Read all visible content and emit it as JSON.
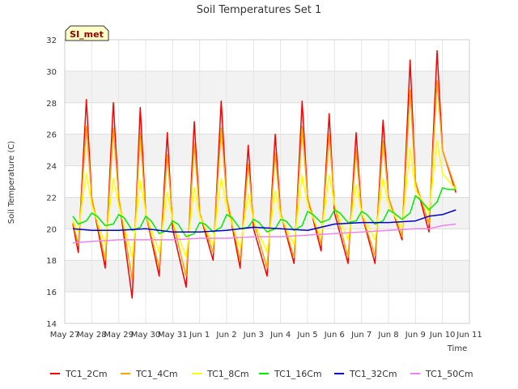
{
  "chart_data": {
    "type": "line",
    "title": "Soil Temperatures Set 1",
    "xlabel": "Time",
    "ylabel": "Soil Temperature (C)",
    "ylim": [
      14,
      32
    ],
    "yticks": [
      14,
      16,
      18,
      20,
      22,
      24,
      26,
      28,
      30,
      32
    ],
    "xlim": [
      0,
      15
    ],
    "xtick_labels": [
      "May 27",
      "May 28",
      "May 29",
      "May 30",
      "May 31",
      "Jun 1",
      "Jun 2",
      "Jun 3",
      "Jun 4",
      "Jun 5",
      "Jun 6",
      "Jun 7",
      "Jun 8",
      "Jun 9",
      "Jun 10",
      "Jun 11"
    ],
    "grid": true,
    "background_bands": true,
    "legend_position": "bottom",
    "badge": "SI_met",
    "series": [
      {
        "name": "TC1_2Cm",
        "color": "#ff0000",
        "x": [
          0.3,
          0.5,
          0.8,
          1.0,
          1.5,
          1.8,
          2.0,
          2.5,
          2.8,
          3.0,
          3.5,
          3.8,
          4.0,
          4.5,
          4.8,
          5.0,
          5.5,
          5.8,
          6.0,
          6.5,
          6.8,
          7.0,
          7.5,
          7.8,
          8.0,
          8.5,
          8.8,
          9.0,
          9.5,
          9.8,
          10.0,
          10.5,
          10.8,
          11.0,
          11.5,
          11.8,
          12.0,
          12.5,
          12.8,
          13.0,
          13.5,
          13.8,
          14.0,
          14.5
        ],
        "y": [
          20.3,
          18.5,
          28.2,
          22,
          17.5,
          28,
          22,
          15.6,
          27.7,
          21,
          17,
          26.1,
          20,
          16.3,
          26.8,
          21,
          18,
          28.1,
          22,
          17.5,
          25.3,
          20,
          17,
          26,
          21,
          17.8,
          28.1,
          22,
          18.6,
          27.3,
          21,
          17.8,
          26.1,
          21,
          17.8,
          26.9,
          22,
          19.3,
          30.7,
          23,
          19.8,
          31.3,
          25,
          22.3
        ]
      },
      {
        "name": "TC1_4Cm",
        "color": "#ffa500",
        "x": [
          0.3,
          0.5,
          0.8,
          1.0,
          1.5,
          1.8,
          2.0,
          2.5,
          2.8,
          3.0,
          3.5,
          3.8,
          4.0,
          4.5,
          4.8,
          5.0,
          5.5,
          5.8,
          6.0,
          6.5,
          6.8,
          7.0,
          7.5,
          7.8,
          8.0,
          8.5,
          8.8,
          9.0,
          9.5,
          9.8,
          10.0,
          10.5,
          10.8,
          11.0,
          11.5,
          11.8,
          12.0,
          12.5,
          12.8,
          13.0,
          13.5,
          13.8,
          14.0,
          14.5
        ],
        "y": [
          20.4,
          19,
          26.5,
          22,
          18,
          26.4,
          22,
          16.8,
          26.1,
          21,
          17.5,
          24.7,
          20.5,
          17,
          25.4,
          21,
          18.5,
          26.4,
          22,
          18,
          24.1,
          20.5,
          17.5,
          24.8,
          21,
          18.2,
          26.5,
          22,
          19,
          26,
          21.5,
          18.2,
          25,
          21,
          18.3,
          25.6,
          22,
          19.5,
          28.8,
          23,
          20.3,
          29.4,
          25,
          22.5
        ]
      },
      {
        "name": "TC1_8Cm",
        "color": "#ffff00",
        "x": [
          0.3,
          0.5,
          0.8,
          1.0,
          1.5,
          1.8,
          2.0,
          2.5,
          2.8,
          3.0,
          3.5,
          3.8,
          4.0,
          4.5,
          4.8,
          5.0,
          5.5,
          5.8,
          6.0,
          6.5,
          6.8,
          7.0,
          7.5,
          7.8,
          8.0,
          8.5,
          8.8,
          9.0,
          9.5,
          9.8,
          10.0,
          10.5,
          10.8,
          11.0,
          11.5,
          11.8,
          12.0,
          12.5,
          12.8,
          13.0,
          13.5,
          13.8,
          14.0,
          14.5
        ],
        "y": [
          20.5,
          19.8,
          23.5,
          21.5,
          19,
          23.2,
          21.5,
          18.2,
          23.1,
          21,
          18.5,
          22.3,
          20.5,
          18.2,
          22.6,
          20.8,
          19,
          23.2,
          21.3,
          18.8,
          22.2,
          20.5,
          18.5,
          22.4,
          20.8,
          19,
          23.4,
          21.5,
          19.5,
          23.4,
          21.5,
          19.3,
          22.8,
          21,
          19.3,
          23.2,
          21.5,
          20,
          25.1,
          22.5,
          21,
          25.6,
          23.5,
          22.5
        ]
      },
      {
        "name": "TC1_16Cm",
        "color": "#00ee00",
        "x": [
          0.3,
          0.5,
          0.8,
          1.0,
          1.2,
          1.5,
          1.8,
          2.0,
          2.2,
          2.5,
          2.8,
          3.0,
          3.2,
          3.5,
          3.8,
          4.0,
          4.2,
          4.5,
          4.8,
          5.0,
          5.2,
          5.5,
          5.8,
          6.0,
          6.2,
          6.5,
          6.8,
          7.0,
          7.2,
          7.5,
          7.8,
          8.0,
          8.2,
          8.5,
          8.8,
          9.0,
          9.2,
          9.5,
          9.8,
          10.0,
          10.2,
          10.5,
          10.8,
          11.0,
          11.2,
          11.5,
          11.8,
          12.0,
          12.2,
          12.5,
          12.8,
          13.0,
          13.2,
          13.5,
          13.8,
          14.0,
          14.2,
          14.5
        ],
        "y": [
          20.8,
          20.3,
          20.5,
          21,
          20.8,
          20.2,
          20.3,
          20.9,
          20.7,
          19.9,
          20.1,
          20.8,
          20.5,
          19.7,
          19.9,
          20.5,
          20.3,
          19.5,
          19.7,
          20.4,
          20.3,
          19.8,
          20.1,
          20.9,
          20.7,
          20,
          20.1,
          20.6,
          20.4,
          19.8,
          20,
          20.6,
          20.5,
          19.9,
          20.2,
          21.1,
          20.9,
          20.4,
          20.6,
          21.2,
          21,
          20.4,
          20.5,
          21.1,
          20.9,
          20.3,
          20.5,
          21.2,
          21,
          20.6,
          21,
          22.1,
          21.8,
          21.2,
          21.7,
          22.6,
          22.5,
          22.5
        ]
      },
      {
        "name": "TC1_32Cm",
        "color": "#0000cc",
        "x": [
          0.3,
          1.0,
          2.0,
          3.0,
          4.0,
          5.0,
          6.0,
          7.0,
          8.0,
          9.0,
          10.0,
          11.0,
          12.0,
          13.0,
          13.5,
          14.0,
          14.5
        ],
        "y": [
          20.0,
          19.9,
          19.9,
          20.0,
          19.8,
          19.8,
          19.9,
          20.1,
          20.0,
          19.9,
          20.3,
          20.4,
          20.4,
          20.5,
          20.8,
          20.9,
          21.2
        ]
      },
      {
        "name": "TC1_50Cm",
        "color": "#ee82ee",
        "x": [
          0.3,
          1.0,
          2.0,
          3.0,
          4.0,
          5.0,
          6.0,
          7.0,
          8.0,
          9.0,
          10.0,
          11.0,
          12.0,
          13.0,
          13.5,
          14.0,
          14.5
        ],
        "y": [
          19.1,
          19.2,
          19.3,
          19.3,
          19.3,
          19.4,
          19.4,
          19.5,
          19.5,
          19.6,
          19.7,
          19.8,
          19.9,
          20.0,
          20.0,
          20.2,
          20.3
        ]
      }
    ]
  }
}
